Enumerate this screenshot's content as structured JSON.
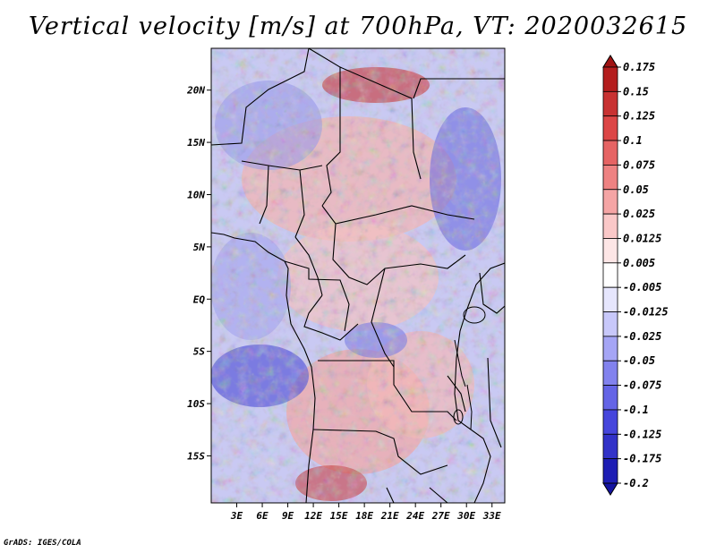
{
  "title": "Vertical velocity [m/s] at 700hPa, VT: 2020032615",
  "footer": "GrADS: IGES/COLA",
  "map": {
    "lon_range": [
      0,
      34.5
    ],
    "lat_range": [
      -19.5,
      24
    ],
    "lon_labels": [
      "3E",
      "6E",
      "9E",
      "12E",
      "15E",
      "18E",
      "21E",
      "24E",
      "27E",
      "30E",
      "33E"
    ],
    "lon_values": [
      3,
      6,
      9,
      12,
      15,
      18,
      21,
      24,
      27,
      30,
      33
    ],
    "lat_labels": [
      "20N",
      "15N",
      "10N",
      "5N",
      "EQ",
      "5S",
      "10S",
      "15S"
    ],
    "lat_values": [
      20,
      15,
      10,
      5,
      0,
      -5,
      -10,
      -15
    ]
  },
  "colorbar": {
    "labels": [
      "0.175",
      "0.15",
      "0.125",
      "0.1",
      "0.075",
      "0.05",
      "0.025",
      "0.0125",
      "0.005",
      "-0.005",
      "-0.0125",
      "-0.025",
      "-0.05",
      "-0.075",
      "-0.1",
      "-0.125",
      "-0.175",
      "-0.2"
    ],
    "colors": [
      "#a01414",
      "#b41e1e",
      "#c83232",
      "#dc4646",
      "#e66464",
      "#ee8282",
      "#f5a5a5",
      "#fac8c8",
      "#fde6e6",
      "#ffffff",
      "#e6e6fd",
      "#c8c8fa",
      "#a5a5f5",
      "#8282ee",
      "#6464e6",
      "#4646dc",
      "#3232c8",
      "#1e1eb4",
      "#1414a0"
    ]
  }
}
